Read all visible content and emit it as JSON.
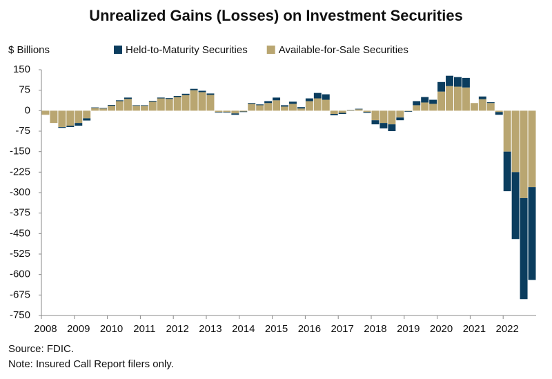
{
  "chart_data": {
    "type": "stacked_bar",
    "title": "Unrealized Gains (Losses) on Investment Securities",
    "y_label": "$ Billions",
    "source": "Source: FDIC.",
    "note": "Note: Insured Call Report filers only.",
    "categories": [
      "2008",
      null,
      null,
      null,
      "2009",
      null,
      null,
      null,
      "2010",
      null,
      null,
      null,
      "2011",
      null,
      null,
      null,
      "2012",
      null,
      null,
      null,
      "2013",
      null,
      null,
      null,
      "2014",
      null,
      null,
      null,
      "2015",
      null,
      null,
      null,
      "2016",
      null,
      null,
      null,
      "2017",
      null,
      null,
      null,
      "2018",
      null,
      null,
      null,
      "2019",
      null,
      null,
      null,
      "2020",
      null,
      null,
      null,
      "2021",
      null,
      null,
      null,
      "2022",
      null,
      null,
      null
    ],
    "series": [
      {
        "name": "Available-for-Sale Securities",
        "color": "#b9a671",
        "values": [
          -15,
          -45,
          -60,
          -55,
          -45,
          -28,
          10,
          8,
          18,
          35,
          43,
          18,
          18,
          33,
          45,
          43,
          50,
          57,
          75,
          68,
          58,
          -5,
          -5,
          -10,
          -3,
          25,
          20,
          28,
          38,
          15,
          25,
          8,
          35,
          45,
          40,
          -12,
          -8,
          2,
          5,
          -5,
          -35,
          -45,
          -50,
          -25,
          -2,
          20,
          30,
          25,
          70,
          90,
          88,
          85,
          28,
          42,
          28,
          -5,
          -150,
          -225,
          -320,
          -280
        ]
      },
      {
        "name": "Held-to-Maturity Securities",
        "color": "#0b3d5e",
        "values": [
          0,
          0,
          -3,
          -5,
          -10,
          -8,
          2,
          2,
          3,
          3,
          5,
          2,
          2,
          3,
          3,
          3,
          4,
          5,
          5,
          5,
          5,
          -2,
          -2,
          -5,
          -2,
          3,
          3,
          7,
          10,
          5,
          8,
          5,
          10,
          20,
          20,
          -5,
          -4,
          1,
          2,
          -3,
          -15,
          -20,
          -25,
          -10,
          -2,
          15,
          20,
          15,
          35,
          38,
          35,
          35,
          0,
          10,
          3,
          -10,
          -145,
          -245,
          -370,
          -340
        ]
      }
    ],
    "ylim": [
      -750,
      150
    ],
    "yticks": [
      150,
      75,
      0,
      -75,
      -150,
      -225,
      -300,
      -375,
      -450,
      -525,
      -600,
      -675,
      -750
    ],
    "grid": false
  }
}
